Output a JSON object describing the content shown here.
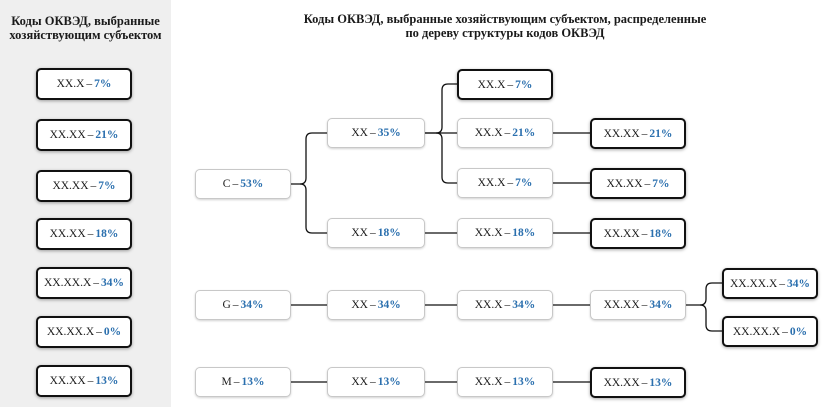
{
  "sidebar": {
    "title": "Коды ОКВЭД, выбранные хозяйствующим субъектом",
    "items": [
      {
        "code": "XX.X",
        "pct": "7%"
      },
      {
        "code": "XX.XX",
        "pct": "21%"
      },
      {
        "code": "XX.XX",
        "pct": "7%"
      },
      {
        "code": "XX.XX",
        "pct": "18%"
      },
      {
        "code": "XX.XX.X",
        "pct": "34%"
      },
      {
        "code": "XX.XX.X",
        "pct": "0%"
      },
      {
        "code": "XX.XX",
        "pct": "13%"
      }
    ]
  },
  "main": {
    "title": "Коды ОКВЭД, выбранные хозяйствующим субъектом, распределенные по дереву структуры кодов ОКВЭД"
  },
  "separator": "–",
  "tree": {
    "C": {
      "code": "C",
      "pct": "53%"
    },
    "C_xx1": {
      "code": "XX",
      "pct": "35%"
    },
    "C_xx1_a": {
      "code": "XX.X",
      "pct": "7%"
    },
    "C_xx1_b": {
      "code": "XX.X",
      "pct": "21%"
    },
    "C_xx1_b1": {
      "code": "XX.XX",
      "pct": "21%"
    },
    "C_xx1_c": {
      "code": "XX.X",
      "pct": "7%"
    },
    "C_xx1_c1": {
      "code": "XX.XX",
      "pct": "7%"
    },
    "C_xx2": {
      "code": "XX",
      "pct": "18%"
    },
    "C_xx2_a": {
      "code": "XX.X",
      "pct": "18%"
    },
    "C_xx2_a1": {
      "code": "XX.XX",
      "pct": "18%"
    },
    "G": {
      "code": "G",
      "pct": "34%"
    },
    "G_xx": {
      "code": "XX",
      "pct": "34%"
    },
    "G_xx_a": {
      "code": "XX.X",
      "pct": "34%"
    },
    "G_xx_a1": {
      "code": "XX.XX",
      "pct": "34%"
    },
    "G_leaf1": {
      "code": "XX.XX.X",
      "pct": "34%"
    },
    "G_leaf2": {
      "code": "XX.XX.X",
      "pct": "0%"
    },
    "M": {
      "code": "M",
      "pct": "13%"
    },
    "M_xx": {
      "code": "XX",
      "pct": "13%"
    },
    "M_xx_a": {
      "code": "XX.X",
      "pct": "13%"
    },
    "M_xx_a1": {
      "code": "XX.XX",
      "pct": "13%"
    }
  },
  "colors": {
    "percent": "#2a6fae",
    "sidebar_bg": "#efefef",
    "connector": "#111111"
  }
}
